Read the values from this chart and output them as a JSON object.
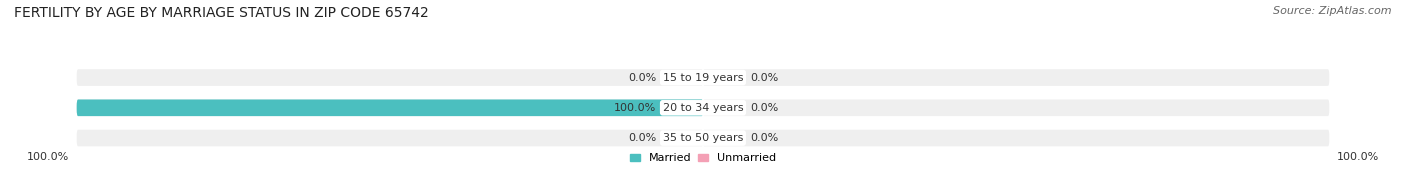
{
  "title": "FERTILITY BY AGE BY MARRIAGE STATUS IN ZIP CODE 65742",
  "source": "Source: ZipAtlas.com",
  "categories": [
    "15 to 19 years",
    "20 to 34 years",
    "35 to 50 years"
  ],
  "married_values": [
    0.0,
    100.0,
    0.0
  ],
  "unmarried_values": [
    0.0,
    0.0,
    0.0
  ],
  "married_color": "#4BBFBF",
  "unmarried_color": "#F4A0B5",
  "bar_bg_color": "#EFEFEF",
  "bar_height": 0.55,
  "title_fontsize": 10,
  "label_fontsize": 8,
  "tick_fontsize": 8,
  "source_fontsize": 8,
  "fig_bg_color": "#FFFFFF",
  "axes_bg_color": "#FFFFFF",
  "left_label_100": "100.0%",
  "right_label_100": "100.0%"
}
